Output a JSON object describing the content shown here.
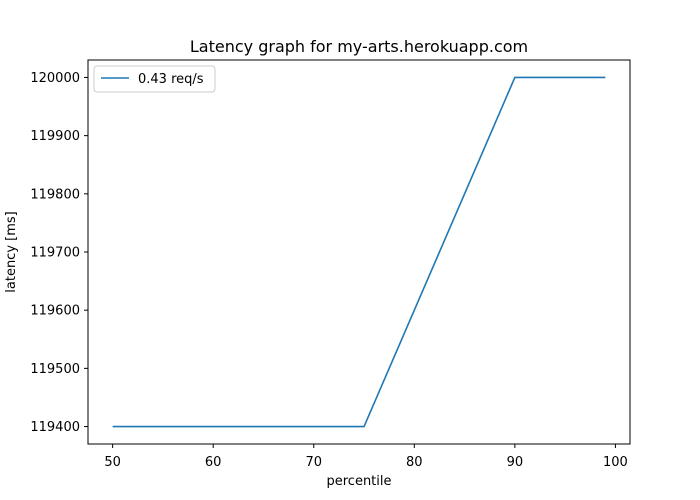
{
  "chart_data": {
    "type": "line",
    "title": "Latency graph for my-arts.herokuapp.com",
    "xlabel": "percentile",
    "ylabel": "latency [ms]",
    "xlim": [
      47.55,
      101.45
    ],
    "ylim": [
      119370,
      120030
    ],
    "xticks": [
      50,
      60,
      70,
      80,
      90,
      100
    ],
    "yticks": [
      119400,
      119500,
      119600,
      119700,
      119800,
      119900,
      120000
    ],
    "grid": false,
    "legend_position": "top-left",
    "series": [
      {
        "name": "0.43 req/s",
        "color": "#1f77b4",
        "x": [
          50,
          75,
          90,
          99
        ],
        "y": [
          119400,
          119400,
          120000,
          120000
        ]
      }
    ]
  }
}
